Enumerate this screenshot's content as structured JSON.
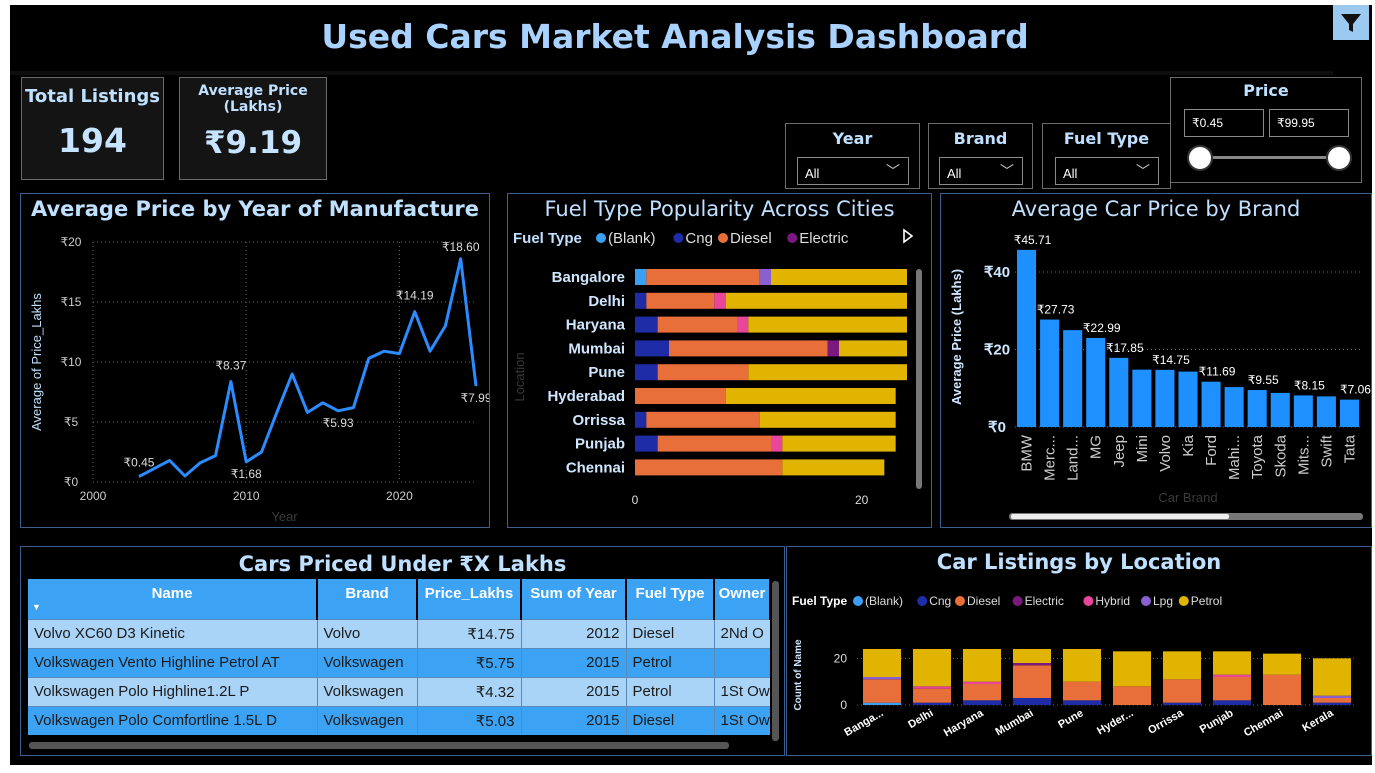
{
  "header": {
    "title": "Used Cars Market Analysis Dashboard",
    "filter_icon": "filter-funnel-icon"
  },
  "kpis": {
    "total_listings": {
      "label": "Total Listings",
      "value": "194"
    },
    "average_price": {
      "label_line1": "Average Price",
      "label_line2": "(Lakhs)",
      "value": "₹9.19"
    }
  },
  "slicers": {
    "year": {
      "title": "Year",
      "value": "All"
    },
    "brand": {
      "title": "Brand",
      "value": "All"
    },
    "fuel_type": {
      "title": "Fuel Type",
      "value": "All"
    },
    "price": {
      "title": "Price",
      "min": "₹0.45",
      "max": "₹99.95"
    }
  },
  "colors": {
    "blank": "#3ba0f5",
    "cng": "#1f2ca8",
    "diesel": "#e86f3a",
    "electric": "#7b1a7e",
    "hybrid": "#e8469a",
    "lpg": "#8a5fcf",
    "petrol": "#e0b400",
    "bar_blue": "#1e90ff",
    "line_blue": "#2b8cff"
  },
  "chart_data": [
    {
      "id": "avg-price-by-year",
      "type": "line",
      "title": "Average Price by Year of Manufacture",
      "xlabel": "Year",
      "ylabel": "Average of Price_Lakhs",
      "xlim": [
        2000,
        2025
      ],
      "ylim": [
        0,
        20
      ],
      "x_ticks": [
        "2000",
        "2010",
        "2020"
      ],
      "y_ticks": [
        "₹0",
        "₹5",
        "₹10",
        "₹15",
        "₹20"
      ],
      "grid": true,
      "x": [
        2003,
        2005,
        2006,
        2007,
        2008,
        2009,
        2010,
        2011,
        2012,
        2013,
        2014,
        2015,
        2016,
        2017,
        2018,
        2019,
        2020,
        2021,
        2022,
        2023,
        2024,
        2025
      ],
      "values": [
        0.45,
        1.8,
        0.5,
        1.6,
        2.2,
        8.37,
        1.68,
        2.5,
        5.8,
        9.0,
        5.8,
        6.6,
        5.93,
        6.2,
        10.3,
        10.9,
        10.7,
        14.19,
        10.9,
        13.0,
        18.6,
        7.99
      ],
      "point_labels": [
        {
          "x": 2003,
          "label": "₹0.45"
        },
        {
          "x": 2009,
          "label": "₹8.37"
        },
        {
          "x": 2010,
          "label": "₹1.68"
        },
        {
          "x": 2016,
          "label": "₹5.93"
        },
        {
          "x": 2021,
          "label": "₹14.19"
        },
        {
          "x": 2024,
          "label": "₹18.60"
        },
        {
          "x": 2025,
          "label": "₹7.99"
        }
      ]
    },
    {
      "id": "fuel-popularity-cities",
      "type": "bar",
      "orientation": "horizontal-stacked",
      "title": "Fuel Type Popularity Across Cities",
      "ylabel": "Location",
      "legend_title": "Fuel Type",
      "legend": [
        "(Blank)",
        "Cng",
        "Diesel",
        "Electric"
      ],
      "categories": [
        "Bangalore",
        "Delhi",
        "Haryana",
        "Mumbai",
        "Pune",
        "Hyderabad",
        "Orrissa",
        "Punjab",
        "Chennai"
      ],
      "x_ticks": [
        "0",
        "20"
      ],
      "xlim": [
        0,
        24
      ],
      "series": [
        {
          "name": "(Blank)",
          "color": "blank",
          "values": [
            1,
            0,
            0,
            0,
            0,
            0,
            0,
            0,
            0
          ]
        },
        {
          "name": "Cng",
          "color": "cng",
          "values": [
            0,
            1,
            2,
            3,
            2,
            0,
            1,
            2,
            0
          ]
        },
        {
          "name": "Diesel",
          "color": "diesel",
          "values": [
            10,
            6,
            7,
            14,
            8,
            8,
            10,
            10,
            13
          ]
        },
        {
          "name": "Electric",
          "color": "electric",
          "values": [
            0,
            0,
            0,
            1,
            0,
            0,
            0,
            0,
            0
          ]
        },
        {
          "name": "Hybrid",
          "color": "hybrid",
          "values": [
            0,
            1,
            1,
            0,
            0,
            0,
            0,
            1,
            0
          ]
        },
        {
          "name": "Lpg",
          "color": "lpg",
          "values": [
            1,
            0,
            0,
            0,
            0,
            0,
            0,
            0,
            0
          ]
        },
        {
          "name": "Petrol",
          "color": "petrol",
          "values": [
            12,
            16,
            14,
            6,
            14,
            15,
            12,
            10,
            9
          ]
        }
      ]
    },
    {
      "id": "avg-price-by-brand",
      "type": "bar",
      "title": "Average Car Price by Brand",
      "xlabel": "Car Brand",
      "ylabel": "Average Price (Lakhs)",
      "ylim": [
        0,
        48
      ],
      "y_ticks": [
        "₹0",
        "₹20",
        "₹40"
      ],
      "categories": [
        "BMW",
        "Merc...",
        "Land...",
        "MG",
        "Jeep",
        "Mini",
        "Volvo",
        "Kia",
        "Ford",
        "Mahi...",
        "Toyota",
        "Skoda",
        "Mits...",
        "Swift",
        "Tata"
      ],
      "values": [
        45.71,
        27.73,
        25.0,
        22.99,
        17.85,
        14.8,
        14.75,
        14.3,
        11.69,
        10.3,
        9.55,
        8.8,
        8.15,
        7.9,
        7.06
      ],
      "data_labels": [
        "₹45.71",
        "₹27.73",
        "",
        "₹22.99",
        "₹17.85",
        "",
        "₹14.75",
        "",
        "₹11.69",
        "",
        "₹9.55",
        "",
        "₹8.15",
        "",
        "₹7.06"
      ]
    },
    {
      "id": "listings-by-location",
      "type": "bar",
      "orientation": "vertical-stacked",
      "title": "Car Listings by Location",
      "ylabel": "Count of Name",
      "legend_title": "Fuel Type",
      "legend": [
        "(Blank)",
        "Cng",
        "Diesel",
        "Electric",
        "Hybrid",
        "Lpg",
        "Petrol"
      ],
      "y_ticks": [
        "0",
        "20"
      ],
      "ylim": [
        0,
        30
      ],
      "categories": [
        "Banga...",
        "Delhi",
        "Haryana",
        "Mumbai",
        "Pune",
        "Hyder...",
        "Orrissa",
        "Punjab",
        "Chennai",
        "Kerala"
      ],
      "series": [
        {
          "name": "(Blank)",
          "color": "blank",
          "values": [
            1,
            0,
            0,
            0,
            0,
            0,
            0,
            0,
            0,
            0
          ]
        },
        {
          "name": "Cng",
          "color": "cng",
          "values": [
            0,
            1,
            2,
            3,
            2,
            0,
            1,
            2,
            0,
            1
          ]
        },
        {
          "name": "Diesel",
          "color": "diesel",
          "values": [
            10,
            6,
            7,
            14,
            8,
            8,
            10,
            10,
            13,
            2
          ]
        },
        {
          "name": "Electric",
          "color": "electric",
          "values": [
            0,
            0,
            0,
            1,
            0,
            0,
            0,
            0,
            0,
            0
          ]
        },
        {
          "name": "Hybrid",
          "color": "hybrid",
          "values": [
            0,
            1,
            1,
            0,
            0,
            0,
            0,
            1,
            0,
            0
          ]
        },
        {
          "name": "Lpg",
          "color": "lpg",
          "values": [
            1,
            0,
            0,
            0,
            0,
            0,
            0,
            0,
            0,
            1
          ]
        },
        {
          "name": "Petrol",
          "color": "petrol",
          "values": [
            12,
            16,
            14,
            6,
            14,
            15,
            12,
            10,
            9,
            16
          ]
        }
      ]
    }
  ],
  "table": {
    "title": "Cars Priced Under ₹X Lakhs",
    "columns": [
      "Name",
      "Brand",
      "Price_Lakhs",
      "Sum of Year",
      "Fuel Type",
      "Owner"
    ],
    "rows": [
      [
        "Volvo XC60 D3 Kinetic",
        "Volvo",
        "₹14.75",
        "2012",
        "Diesel",
        "2Nd O"
      ],
      [
        "Volkswagen Vento Highline Petrol AT",
        "Volkswagen",
        "₹5.75",
        "2015",
        "Petrol",
        ""
      ],
      [
        "Volkswagen Polo Highline1.2L P",
        "Volkswagen",
        "₹4.32",
        "2015",
        "Petrol",
        "1St Ow"
      ],
      [
        "Volkswagen Polo Comfortline 1.5L D",
        "Volkswagen",
        "₹5.03",
        "2015",
        "Diesel",
        "1St Ow"
      ]
    ]
  }
}
